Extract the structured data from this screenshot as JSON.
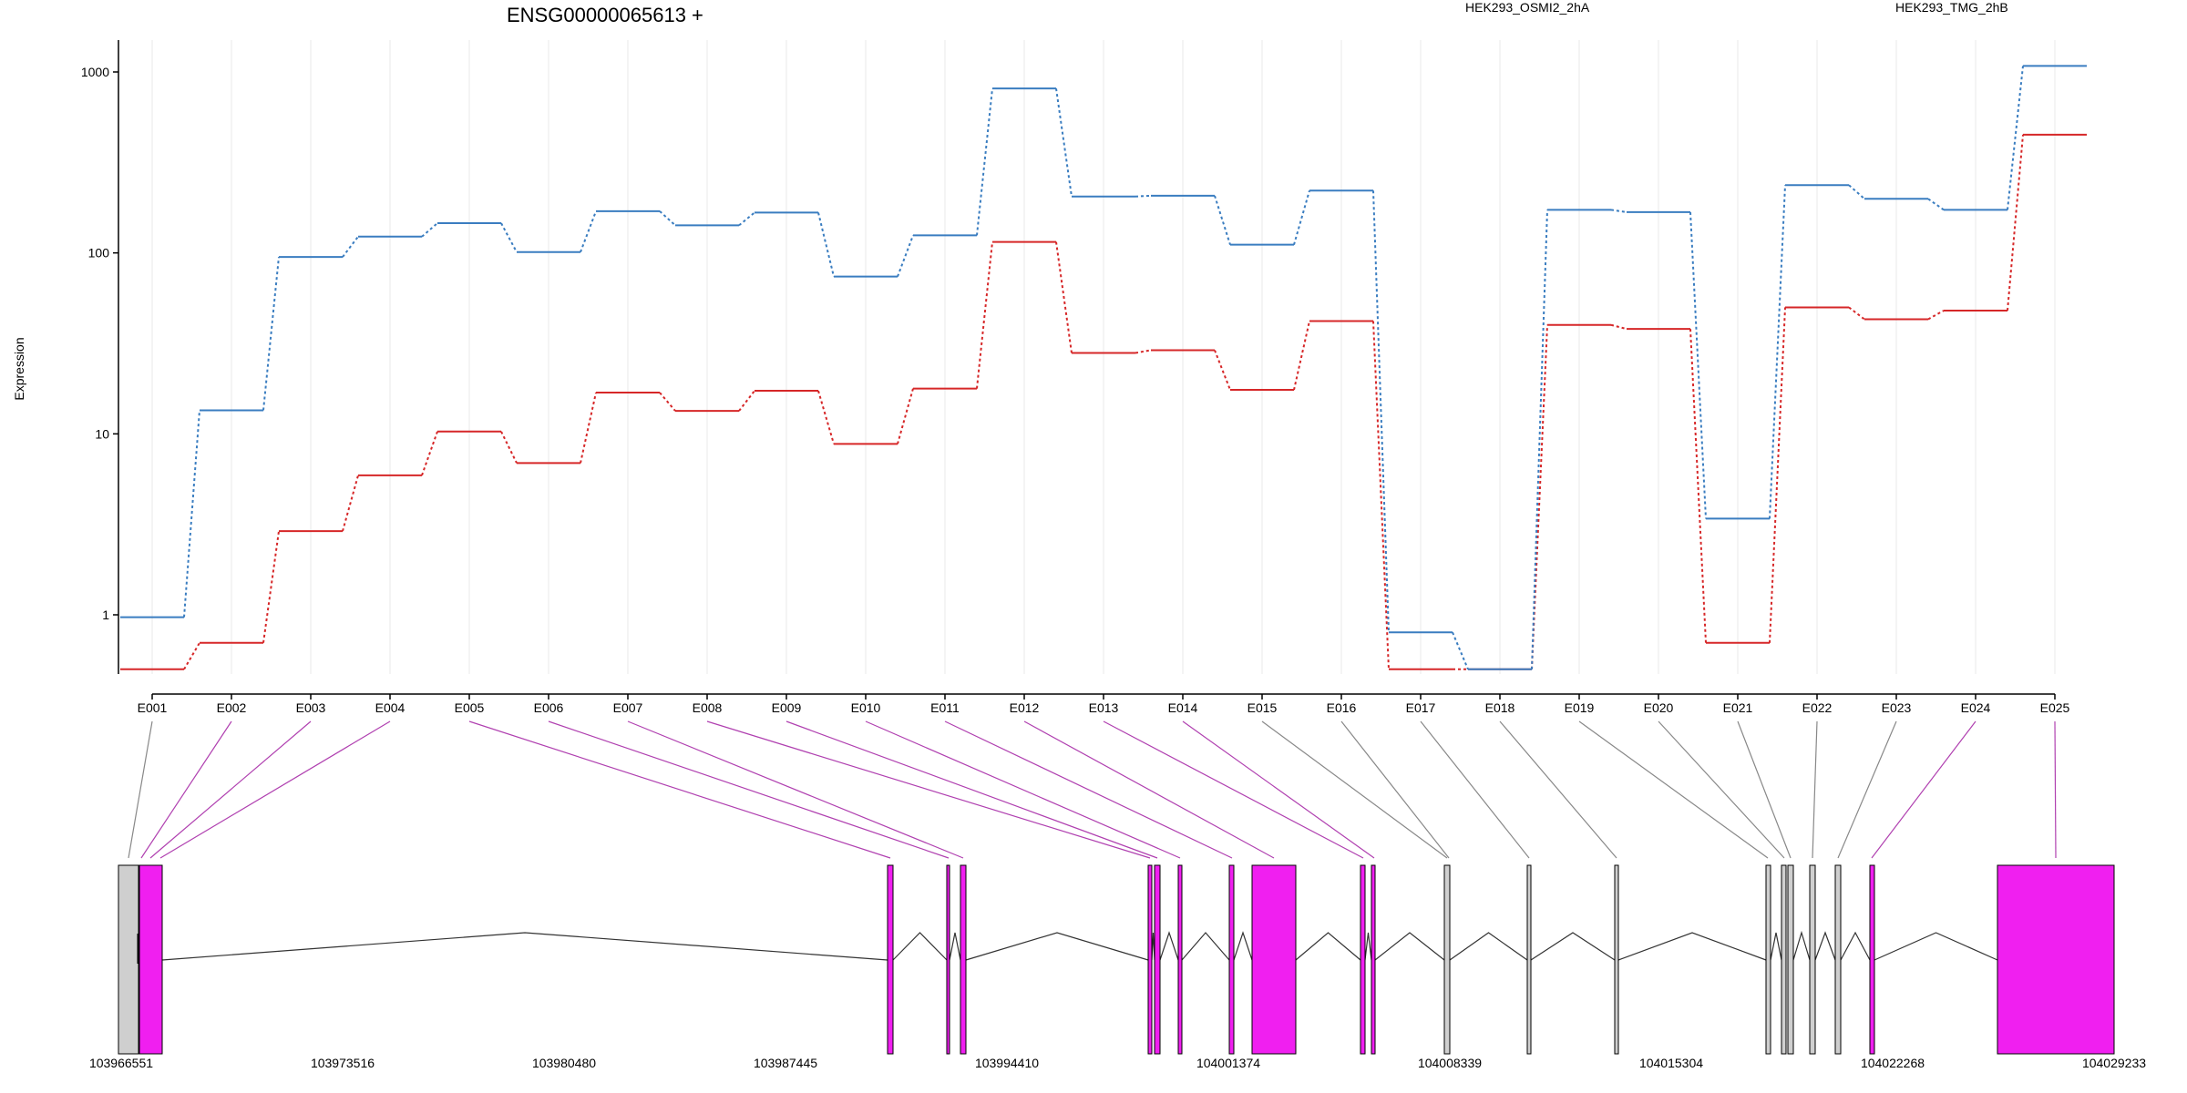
{
  "chart_data": {
    "type": "line",
    "title": "ENSG00000065613 +",
    "ylabel": "Expression",
    "xlabel": "",
    "y_scale": "log",
    "ylim": [
      0.5,
      1300
    ],
    "y_ticks": [
      "1",
      "10",
      "100",
      "1000"
    ],
    "grid": "vertical, light gray, one per exon",
    "legend_placement": "top-right",
    "categories": [
      "E001",
      "E002",
      "E003",
      "E004",
      "E005",
      "E006",
      "E007",
      "E008",
      "E009",
      "E010",
      "E011",
      "E012",
      "E013",
      "E014",
      "E015",
      "E016",
      "E017",
      "E018",
      "E019",
      "E020",
      "E021",
      "E022",
      "E023",
      "E024",
      "E025"
    ],
    "series": [
      {
        "name": "HEK293_OSMI2_2hA",
        "color": "#d62728",
        "values": [
          0.5,
          0.7,
          2.9,
          5.9,
          10.3,
          6.9,
          16.9,
          13.4,
          17.3,
          8.8,
          17.8,
          115,
          28,
          29,
          17.5,
          42,
          0.5,
          0.5,
          40,
          38,
          0.7,
          50,
          43,
          48,
          450
        ]
      },
      {
        "name": "HEK293_TMG_2hB",
        "color": "#3a7dc0",
        "values": [
          0.97,
          13.5,
          95,
          123,
          146,
          101,
          170,
          142,
          167,
          74,
          125,
          810,
          205,
          207,
          111,
          221,
          0.8,
          0.5,
          173,
          168,
          3.4,
          237,
          199,
          173,
          1080
        ]
      }
    ],
    "gene_model": {
      "coordinate_labels": [
        "103966551",
        "103973516",
        "103980480",
        "103987445",
        "103994410",
        "104001374",
        "104008339",
        "104015304",
        "104022268",
        "104029233"
      ],
      "colors": {
        "highlight": "#f01ff0",
        "normal": "#cfcfcf",
        "outline": "#000000"
      }
    }
  }
}
